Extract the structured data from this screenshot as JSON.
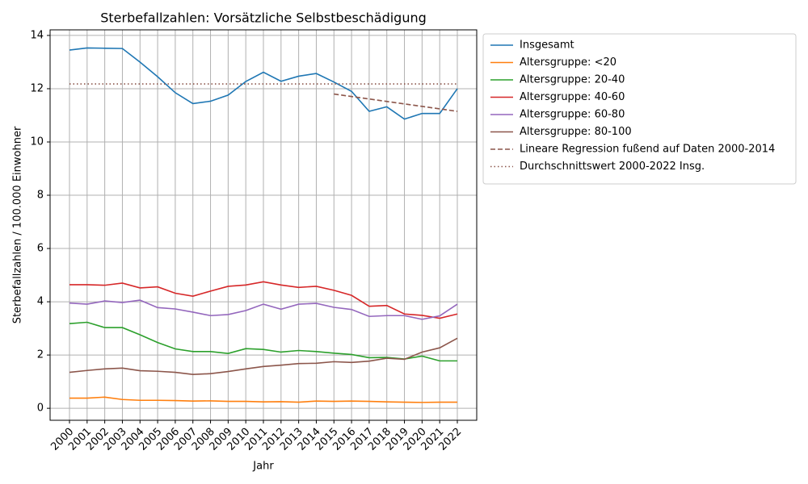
{
  "chart_data": {
    "type": "line",
    "title": "Sterbefallzahlen: Vorsätzliche Selbstbeschädigung",
    "x_label": "Jahr",
    "y_label": "Sterbefallzahlen / 100.000 Einwohner",
    "x": [
      2000,
      2001,
      2002,
      2003,
      2004,
      2005,
      2006,
      2007,
      2008,
      2009,
      2010,
      2011,
      2012,
      2013,
      2014,
      2015,
      2016,
      2017,
      2018,
      2019,
      2020,
      2021,
      2022
    ],
    "xlim": [
      1998.9,
      2023.1
    ],
    "xticks": [
      2000,
      2001,
      2002,
      2003,
      2004,
      2005,
      2006,
      2007,
      2008,
      2009,
      2010,
      2011,
      2012,
      2013,
      2014,
      2015,
      2016,
      2017,
      2018,
      2019,
      2020,
      2021,
      2022
    ],
    "ylim": [
      -0.45,
      14.21
    ],
    "yticks": [
      0,
      2,
      4,
      6,
      8,
      10,
      12,
      14
    ],
    "grid": true,
    "legend": "outside-right",
    "series": [
      {
        "name": "Insgesamt",
        "color": "#1f77b4",
        "style": "solid",
        "values": [
          13.45,
          13.53,
          13.52,
          13.51,
          13.0,
          12.45,
          11.85,
          11.44,
          11.53,
          11.76,
          12.27,
          12.62,
          12.28,
          12.47,
          12.57,
          12.25,
          11.9,
          11.15,
          11.32,
          10.86,
          11.07,
          11.07,
          12.0
        ]
      },
      {
        "name": "Altersgruppe: <20",
        "color": "#ff7f0e",
        "style": "solid",
        "values": [
          0.38,
          0.38,
          0.42,
          0.33,
          0.3,
          0.3,
          0.29,
          0.27,
          0.28,
          0.26,
          0.26,
          0.24,
          0.25,
          0.23,
          0.27,
          0.26,
          0.27,
          0.26,
          0.24,
          0.23,
          0.22,
          0.23,
          0.23
        ]
      },
      {
        "name": "Altersgruppe: 20-40",
        "color": "#2ca02c",
        "style": "solid",
        "values": [
          3.18,
          3.23,
          3.03,
          3.03,
          2.76,
          2.47,
          2.23,
          2.13,
          2.13,
          2.06,
          2.24,
          2.21,
          2.11,
          2.17,
          2.13,
          2.07,
          2.02,
          1.9,
          1.91,
          1.85,
          1.96,
          1.78,
          1.78
        ]
      },
      {
        "name": "Altersgruppe: 40-60",
        "color": "#d62728",
        "style": "solid",
        "values": [
          4.64,
          4.64,
          4.62,
          4.7,
          4.52,
          4.56,
          4.32,
          4.21,
          4.4,
          4.58,
          4.63,
          4.75,
          4.63,
          4.54,
          4.58,
          4.43,
          4.24,
          3.83,
          3.86,
          3.54,
          3.49,
          3.38,
          3.54
        ]
      },
      {
        "name": "Altersgruppe: 60-80",
        "color": "#9467bd",
        "style": "solid",
        "values": [
          3.95,
          3.91,
          4.03,
          3.97,
          4.06,
          3.78,
          3.73,
          3.61,
          3.48,
          3.52,
          3.67,
          3.91,
          3.72,
          3.91,
          3.94,
          3.79,
          3.71,
          3.45,
          3.48,
          3.48,
          3.34,
          3.47,
          3.91
        ]
      },
      {
        "name": "Altersgruppe: 80-100",
        "color": "#8c564b",
        "style": "solid",
        "values": [
          1.35,
          1.42,
          1.48,
          1.51,
          1.41,
          1.39,
          1.35,
          1.27,
          1.3,
          1.38,
          1.48,
          1.57,
          1.62,
          1.68,
          1.69,
          1.75,
          1.72,
          1.77,
          1.88,
          1.84,
          2.11,
          2.27,
          2.63
        ]
      },
      {
        "name": "Lineare Regression fußend auf Daten 2000-2014",
        "color": "#8c564b",
        "style": "dashed",
        "x": [
          2015,
          2022
        ],
        "values": [
          11.8,
          11.15
        ]
      },
      {
        "name": "Durchschnittswert 2000-2022 Insg.",
        "color": "#8c564b",
        "style": "dotted",
        "x": [
          2000,
          2022
        ],
        "values": [
          12.18,
          12.18
        ]
      }
    ]
  }
}
